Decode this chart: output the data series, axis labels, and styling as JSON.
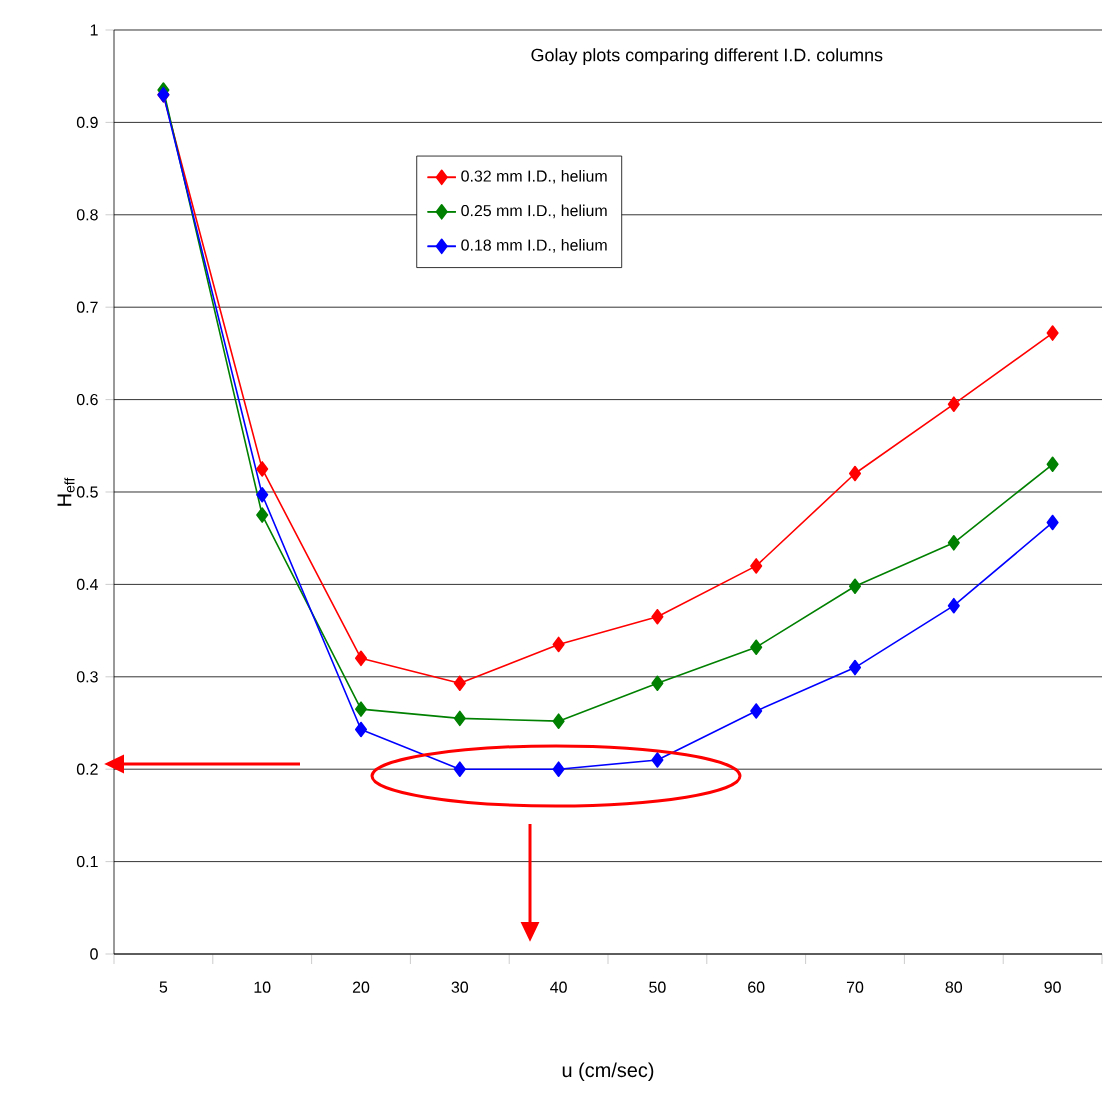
{
  "chart_data": {
    "type": "line",
    "title": "Golay plots comparing different I.D. columns",
    "xlabel": "u (cm/sec)",
    "ylabel": "H$_{eff}$",
    "categories": [
      "5",
      "10",
      "20",
      "30",
      "40",
      "50",
      "60",
      "70",
      "80",
      "90"
    ],
    "series": [
      {
        "name": "0.32 mm I.D., helium",
        "color": "#ff0000",
        "values": [
          0.93,
          0.525,
          0.32,
          0.293,
          0.335,
          0.365,
          0.42,
          0.52,
          0.595,
          0.672
        ]
      },
      {
        "name": "0.25 mm I.D., helium",
        "color": "#008000",
        "values": [
          0.935,
          0.475,
          0.265,
          0.255,
          0.252,
          0.293,
          0.332,
          0.398,
          0.445,
          0.53
        ]
      },
      {
        "name": "0.18 mm I.D., helium",
        "color": "#0000ff",
        "values": [
          0.93,
          0.497,
          0.243,
          0.2,
          0.2,
          0.21,
          0.263,
          0.31,
          0.377,
          0.467
        ]
      }
    ],
    "ylim": [
      0,
      1
    ],
    "yticks": [
      0,
      0.1,
      0.2,
      0.3,
      0.4,
      0.5,
      0.6,
      0.7,
      0.8,
      0.9,
      1
    ],
    "grid": "y",
    "legend": "top",
    "marker": "diamond",
    "line_style": "solid"
  }
}
